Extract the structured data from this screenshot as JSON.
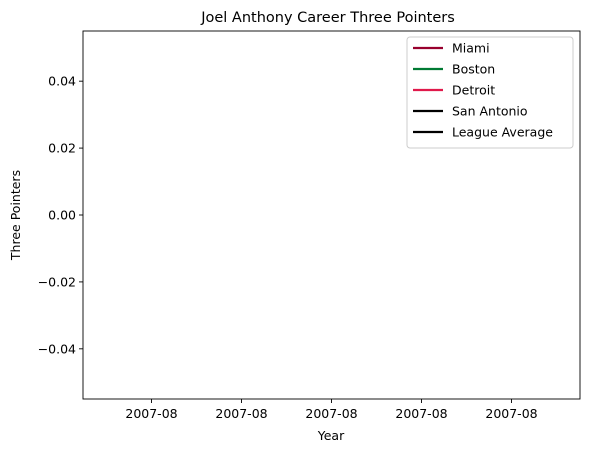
{
  "chart_data": {
    "type": "line",
    "title": "Joel Anthony Career Three Pointers",
    "xlabel": "Year",
    "ylabel": "Three Pointers",
    "ylim": [
      -0.055,
      0.055
    ],
    "y_ticks": [
      0.04,
      0.02,
      0.0,
      -0.02,
      -0.04
    ],
    "y_tick_labels": [
      "0.04",
      "0.02",
      "0.00",
      "−0.02",
      "−0.04"
    ],
    "x_tick_labels": [
      "2007-08",
      "2007-08",
      "2007-08",
      "2007-08",
      "2007-08"
    ],
    "grid": false,
    "legend_placement": "top-right",
    "series": [
      {
        "name": "Miami",
        "color": "#98002e",
        "values": []
      },
      {
        "name": "Boston",
        "color": "#007a33",
        "values": []
      },
      {
        "name": "Detroit",
        "color": "#e0194b",
        "values": []
      },
      {
        "name": "San Antonio",
        "color": "#000000",
        "values": []
      },
      {
        "name": "League Average",
        "color": "#000000",
        "values": []
      }
    ]
  }
}
